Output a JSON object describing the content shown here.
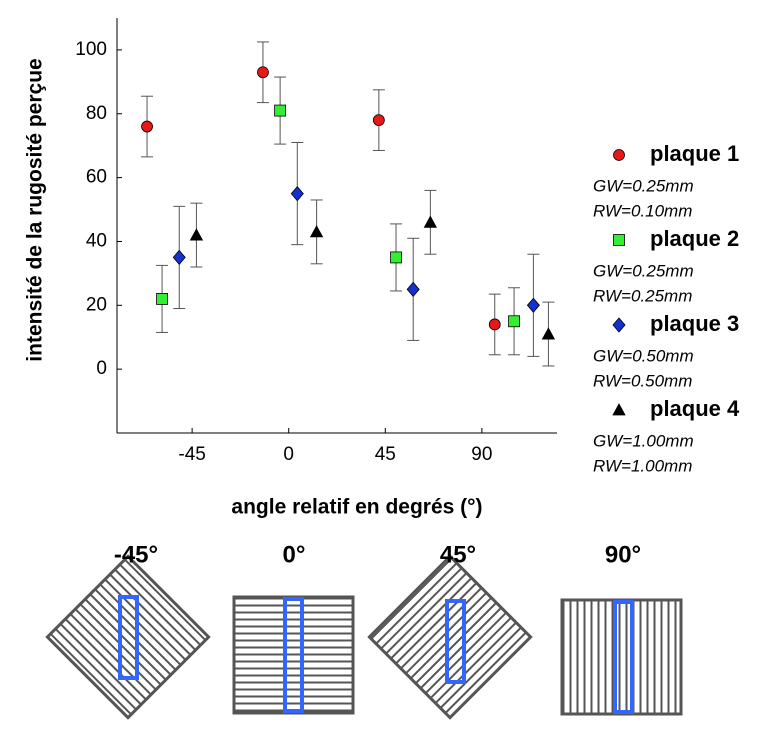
{
  "chart_data": {
    "type": "scatter",
    "ylabel": "intensité de la rugosité perçue",
    "xlabel": "angle relatif en degrés (°)",
    "xlim": [
      -80,
      125
    ],
    "ylim": [
      -20,
      110
    ],
    "xticks": [
      -45,
      0,
      45,
      90
    ],
    "yticks": [
      0,
      20,
      40,
      60,
      80,
      100
    ],
    "grid": false,
    "series": [
      {
        "name": "plaque 1",
        "notes": [
          "GW=0.25mm",
          "RW=0.10mm"
        ],
        "color": "#e81818",
        "marker": "circle",
        "x": [
          -66,
          -12,
          42,
          96
        ],
        "values": [
          76,
          93,
          78,
          14
        ],
        "errors": [
          9.5,
          9.5,
          9.5,
          9.5
        ]
      },
      {
        "name": "plaque 2",
        "notes": [
          "GW=0.25mm",
          "RW=0.25mm"
        ],
        "color": "#33ee33",
        "marker": "square",
        "x": [
          -59,
          -4,
          50,
          105
        ],
        "values": [
          22,
          81,
          35,
          15
        ],
        "errors": [
          10.5,
          10.5,
          10.5,
          10.5
        ]
      },
      {
        "name": "plaque 3",
        "notes": [
          "GW=0.50mm",
          "RW=0.50mm"
        ],
        "color": "#1530d0",
        "marker": "diamond",
        "x": [
          -51,
          4,
          58,
          114
        ],
        "values": [
          35,
          55,
          25,
          20
        ],
        "errors": [
          16,
          16,
          16,
          16
        ]
      },
      {
        "name": "plaque 4",
        "notes": [
          "GW=1.00mm",
          "RW=1.00mm"
        ],
        "color": "#000000",
        "marker": "triangle",
        "x": [
          -43,
          13,
          66,
          121
        ],
        "values": [
          42,
          43,
          46,
          11
        ],
        "errors": [
          10,
          10,
          10,
          10
        ]
      }
    ]
  },
  "diagrams": {
    "labels": [
      "-45°",
      "0°",
      "45°",
      "90°"
    ]
  }
}
